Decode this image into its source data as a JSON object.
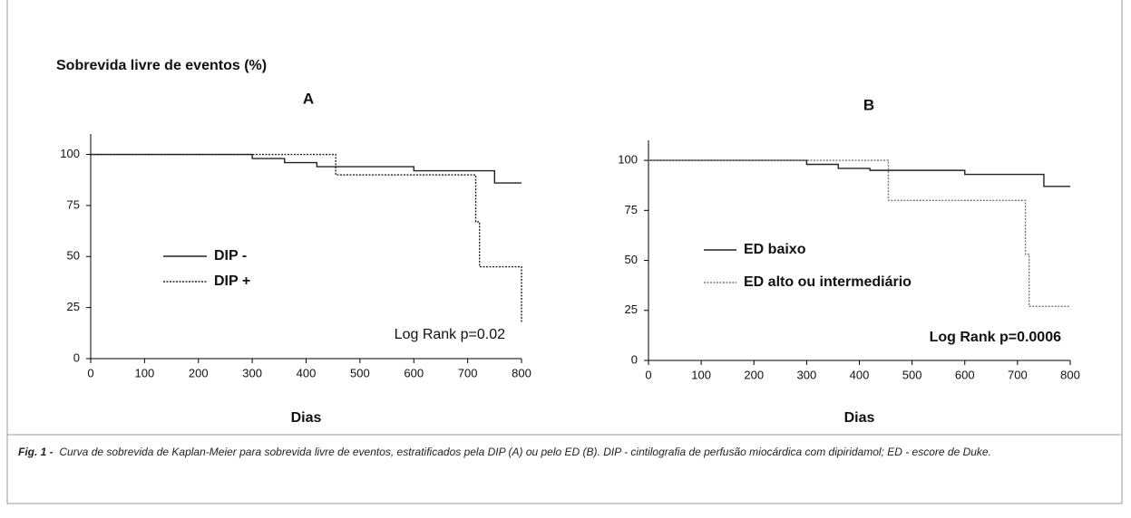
{
  "figure": {
    "y_label": "Sobrevida livre de eventos (%)",
    "caption_label": "Fig. 1 -",
    "caption_text": "Curva de sobrevida de Kaplan-Meier para sobrevida livre de eventos, estratificados pela DIP (A) ou pelo ED (B). DIP - cintilografia de perfusão miocárdica com dipiridamol; ED - escore de Duke."
  },
  "chart_data": [
    {
      "type": "line",
      "title": "A",
      "x_label": "Dias",
      "annotation": "Log Rank p=0.02",
      "annotation_bold": false,
      "xlim": [
        0,
        800
      ],
      "xticks": [
        0,
        100,
        200,
        300,
        400,
        500,
        600,
        700,
        800
      ],
      "ylim": [
        0,
        110
      ],
      "yticks": [
        0,
        25,
        50,
        75,
        100
      ],
      "grid": false,
      "legend": "center left",
      "series": [
        {
          "name": "DIP -",
          "color": "#222222",
          "dash": "solid",
          "x": [
            0,
            300,
            300,
            360,
            360,
            420,
            420,
            600,
            600,
            750,
            750,
            800
          ],
          "values": [
            100,
            100,
            98,
            98,
            96,
            96,
            94,
            94,
            92,
            92,
            86,
            86
          ]
        },
        {
          "name": "DIP +",
          "color": "#222222",
          "dash": "dotted",
          "x": [
            0,
            455,
            455,
            715,
            715,
            722,
            722,
            800,
            800
          ],
          "values": [
            100,
            100,
            90,
            90,
            67,
            67,
            45,
            45,
            18
          ]
        }
      ]
    },
    {
      "type": "line",
      "title": "B",
      "x_label": "Dias",
      "annotation": "Log Rank p=0.0006",
      "annotation_bold": true,
      "xlim": [
        0,
        800
      ],
      "xticks": [
        0,
        100,
        200,
        300,
        400,
        500,
        600,
        700,
        800
      ],
      "ylim": [
        0,
        110
      ],
      "yticks": [
        0,
        25,
        50,
        75,
        100
      ],
      "grid": false,
      "legend": "center left",
      "series": [
        {
          "name": "ED baixo",
          "color": "#222222",
          "dash": "solid",
          "x": [
            0,
            300,
            300,
            360,
            360,
            420,
            420,
            600,
            600,
            750,
            750,
            800
          ],
          "values": [
            100,
            100,
            98,
            98,
            96,
            96,
            95,
            95,
            93,
            93,
            87,
            87
          ]
        },
        {
          "name": "ED alto ou intermediário",
          "color": "#777777",
          "dash": "dotted",
          "x": [
            0,
            455,
            455,
            715,
            715,
            722,
            722,
            800
          ],
          "values": [
            100,
            100,
            80,
            80,
            53,
            53,
            27,
            27
          ]
        }
      ]
    }
  ]
}
